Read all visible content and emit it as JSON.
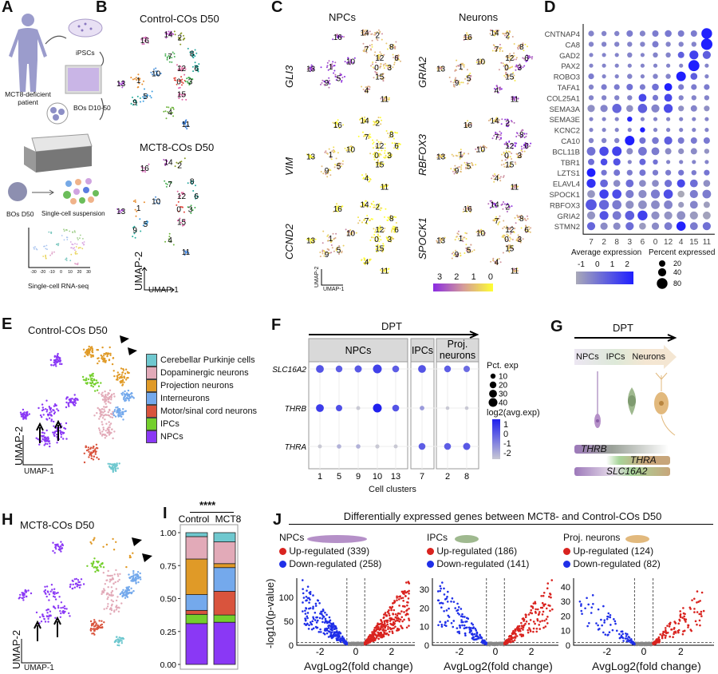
{
  "panel_letters": {
    "A": "A",
    "B": "B",
    "C": "C",
    "D": "D",
    "E": "E",
    "F": "F",
    "G": "G",
    "H": "H",
    "I": "I",
    "J": "J"
  },
  "panel_a": {
    "patient_label": "MCT8-deficient patient",
    "ipsc_label": "iPSCs",
    "bos_early_label": "BOs D10-50",
    "bos_d50_label": "BOs D50",
    "suspension_label": "Single-cell suspension",
    "rnaseq_label": "Single-cell RNA-seq",
    "mini_ticks": [
      "-30",
      "-20",
      "-10",
      "0",
      "10",
      "20",
      "30"
    ]
  },
  "panel_b": {
    "control_title": "Control-COs D50",
    "mct8_title": "MCT8-COs D50",
    "x_axis": "UMAP-1",
    "y_axis": "UMAP-2",
    "cluster_colors": {
      "0": "#e2453b",
      "1": "#e88b2a",
      "2": "#8a9a2a",
      "3": "#3dae4a",
      "4": "#6fb43f",
      "5": "#3d9ee0",
      "6": "#22a89a",
      "7": "#4fb35a",
      "8": "#29a6a0",
      "9": "#2ab0a0",
      "10": "#4a90d8",
      "11": "#3b82e0",
      "12": "#e06aa0",
      "13": "#b04fd8",
      "14": "#b84cc8",
      "15": "#e25fa8",
      "16": "#d46ab8"
    }
  },
  "panel_c": {
    "npc_title": "NPCs",
    "neuron_title": "Neurons",
    "npc_genes": [
      {
        "gene": "GLI3",
        "high_clusters": [
          "13",
          "1",
          "9",
          "5",
          "10",
          "16"
        ]
      },
      {
        "gene": "VIM",
        "high_clusters": [
          "1",
          "9",
          "5"
        ]
      },
      {
        "gene": "CCND2",
        "high_clusters": [
          "1",
          "5",
          "9",
          "10"
        ]
      }
    ],
    "neuron_genes": [
      {
        "gene": "GRIA2",
        "high_clusters": [
          "4",
          "11",
          "3",
          "6"
        ]
      },
      {
        "gene": "RBFOX3",
        "high_clusters": [
          "7",
          "2",
          "8",
          "6",
          "12"
        ]
      },
      {
        "gene": "SPOCK1",
        "high_clusters": [
          "14",
          "2"
        ]
      }
    ],
    "colorbar_ticks": [
      "3",
      "2",
      "1",
      "0"
    ],
    "colorbar_colors": [
      "#8a2be2",
      "#d49a9a",
      "#ffff33"
    ],
    "x_axis": "UMAP-1",
    "y_axis": "UMAP-2"
  },
  "chart_data": [
    {
      "type": "dotplot",
      "panel": "D",
      "genes": [
        "CNTNAP4",
        "CA8",
        "GAD2",
        "PAX2",
        "ROBO3",
        "TAFA1",
        "COL25A1",
        "SEMA3A",
        "SEMA3E",
        "KCNC2",
        "CA10",
        "BCL11B",
        "TBR1",
        "LZTS1",
        "ELAVL4",
        "SPOCK1",
        "RBFOX3",
        "GRIA2",
        "STMN2"
      ],
      "clusters": [
        "7",
        "2",
        "8",
        "3",
        "6",
        "0",
        "12",
        "4",
        "15",
        "11"
      ],
      "pct_expressed": [
        [
          15,
          10,
          10,
          20,
          15,
          20,
          25,
          20,
          20,
          80
        ],
        [
          10,
          10,
          10,
          10,
          10,
          20,
          10,
          10,
          10,
          90
        ],
        [
          5,
          5,
          5,
          10,
          5,
          10,
          10,
          20,
          50,
          40
        ],
        [
          5,
          5,
          5,
          5,
          5,
          5,
          5,
          5,
          85,
          5
        ],
        [
          15,
          5,
          5,
          10,
          5,
          10,
          10,
          60,
          25,
          5
        ],
        [
          10,
          15,
          15,
          20,
          15,
          25,
          35,
          15,
          15,
          15
        ],
        [
          10,
          10,
          10,
          10,
          35,
          15,
          35,
          10,
          10,
          10
        ],
        [
          30,
          30,
          55,
          25,
          55,
          40,
          50,
          15,
          20,
          15
        ],
        [
          5,
          5,
          5,
          10,
          5,
          5,
          5,
          5,
          5,
          5
        ],
        [
          5,
          5,
          5,
          5,
          10,
          5,
          5,
          5,
          5,
          5
        ],
        [
          10,
          10,
          10,
          60,
          20,
          25,
          40,
          20,
          20,
          20
        ],
        [
          45,
          55,
          60,
          20,
          45,
          35,
          20,
          15,
          20,
          10
        ],
        [
          20,
          25,
          30,
          5,
          20,
          10,
          5,
          5,
          5,
          5
        ],
        [
          45,
          15,
          20,
          15,
          20,
          15,
          15,
          15,
          10,
          15
        ],
        [
          50,
          35,
          25,
          35,
          25,
          25,
          30,
          40,
          35,
          25
        ],
        [
          35,
          55,
          55,
          40,
          40,
          50,
          55,
          25,
          40,
          45
        ],
        [
          85,
          65,
          55,
          40,
          45,
          45,
          45,
          15,
          35,
          20
        ],
        [
          40,
          50,
          45,
          55,
          65,
          40,
          40,
          45,
          40,
          35
        ],
        [
          40,
          30,
          30,
          40,
          25,
          30,
          35,
          55,
          35,
          40
        ]
      ],
      "avg_expression": [
        [
          0,
          0,
          0,
          0.2,
          0,
          0.2,
          0.3,
          0.2,
          0.2,
          2.6
        ],
        [
          0,
          0,
          0,
          0,
          0,
          0.2,
          0,
          0,
          0,
          2.7
        ],
        [
          0,
          0,
          0,
          0,
          0,
          0,
          0,
          1,
          1.8,
          1
        ],
        [
          0,
          0,
          0,
          0,
          0,
          0,
          0,
          0,
          2.7,
          0
        ],
        [
          0.2,
          0,
          0,
          0,
          0,
          0,
          0,
          2.7,
          1,
          0
        ],
        [
          0,
          0.2,
          0.2,
          0.5,
          0.2,
          0.5,
          2.7,
          0.2,
          0.2,
          0.2
        ],
        [
          0,
          0,
          0,
          0,
          1.6,
          0.3,
          1.6,
          0,
          0,
          0
        ],
        [
          -0.3,
          0,
          0.8,
          -0.3,
          1,
          0,
          1.5,
          -0.3,
          0,
          -0.3
        ],
        [
          0,
          0,
          0,
          2.5,
          0,
          0,
          0,
          0,
          0,
          0
        ],
        [
          0,
          0,
          0,
          0,
          2.7,
          0,
          0,
          0,
          0,
          0
        ],
        [
          0,
          0,
          0,
          2.7,
          0.5,
          0.3,
          1,
          0.3,
          0.3,
          0.3
        ],
        [
          0.5,
          1.5,
          1.7,
          -0.2,
          0.4,
          0.2,
          -0.2,
          -0.3,
          -0.2,
          -0.4
        ],
        [
          0.6,
          1.5,
          1.3,
          0,
          0.8,
          0.5,
          0,
          0,
          0,
          0
        ],
        [
          2.7,
          0.4,
          0.4,
          0.2,
          0.4,
          0.2,
          0.2,
          0.4,
          0.2,
          0.4
        ],
        [
          2.2,
          0.8,
          -0.2,
          0.6,
          -0.2,
          -0.2,
          0.5,
          1.6,
          0.6,
          -0.3
        ],
        [
          -0.5,
          1.8,
          1.5,
          0.2,
          -0.2,
          0.2,
          1.4,
          -1,
          0.2,
          0.2
        ],
        [
          1.2,
          0.8,
          0.2,
          -0.3,
          -0.3,
          -0.2,
          0,
          -0.6,
          0,
          -0.7
        ],
        [
          -0.4,
          1.3,
          0.3,
          1,
          1.8,
          -0.3,
          -0.4,
          -0.3,
          -0.6,
          -0.8
        ],
        [
          0.8,
          -0.2,
          -0.2,
          0.6,
          -0.6,
          -0.2,
          0.2,
          2.6,
          0.2,
          0.5
        ]
      ],
      "xlabel": "",
      "ylabel": "",
      "legend_color_title": "Average expression",
      "legend_color_ticks": [
        "-1",
        "0",
        "1",
        "2"
      ],
      "legend_color_range": [
        "#a9a9b8",
        "#1f1fff"
      ],
      "legend_size_title": "Percent expressed",
      "legend_size_values": [
        20,
        40,
        80
      ]
    },
    {
      "type": "dotplot",
      "panel": "F",
      "arrow_label": "DPT",
      "facets": [
        {
          "label": "NPCs",
          "clusters": [
            "1",
            "5",
            "9",
            "10",
            "13"
          ]
        },
        {
          "label": "IPCs",
          "clusters": [
            "7"
          ]
        },
        {
          "label": "Proj. neurons",
          "clusters": [
            "2",
            "8"
          ]
        }
      ],
      "genes": [
        "SLC16A2",
        "THRB",
        "THRA"
      ],
      "clusters": [
        "1",
        "5",
        "9",
        "10",
        "13",
        "7",
        "2",
        "8"
      ],
      "pct_exp": [
        [
          30,
          20,
          25,
          40,
          22,
          30,
          20,
          18
        ],
        [
          30,
          18,
          5,
          40,
          22,
          8,
          4,
          4
        ],
        [
          5,
          7,
          7,
          6,
          5,
          22,
          22,
          25
        ]
      ],
      "avg_exp": [
        [
          0.5,
          0.3,
          0.4,
          0.9,
          0.3,
          0.5,
          0.3,
          0
        ],
        [
          1,
          0.6,
          -2,
          1.6,
          0.5,
          -1,
          -2,
          -2
        ],
        [
          -2,
          -1.5,
          -1.5,
          -2,
          -2,
          0.3,
          0.3,
          0.4
        ]
      ],
      "xlabel": "Cell clusters",
      "legend_size_title": "Pct. exp",
      "legend_size_values": [
        10,
        20,
        30,
        40
      ],
      "legend_color_title": "log2(avg.exp)",
      "legend_color_ticks": [
        "1",
        "0",
        "-1",
        "-2"
      ]
    },
    {
      "type": "bar",
      "stacked": true,
      "panel": "I",
      "categories": [
        "Control",
        "MCT8"
      ],
      "significance": "****",
      "yticks": [
        "0.00",
        "0.25",
        "0.50",
        "0.75",
        "1.00"
      ],
      "ylim": [
        0,
        1
      ],
      "series": [
        {
          "name": "NPCs",
          "color": "#8a38f5",
          "values": [
            0.31,
            0.32
          ]
        },
        {
          "name": "IPCs",
          "color": "#74cf2c",
          "values": [
            0.07,
            0.055
          ]
        },
        {
          "name": "Motor/sinal cord neurons",
          "color": "#d9543d",
          "values": [
            0.03,
            0.18
          ]
        },
        {
          "name": "Interneurons",
          "color": "#74a9ec",
          "values": [
            0.12,
            0.18
          ]
        },
        {
          "name": "Projection neurons",
          "color": "#e09a27",
          "values": [
            0.27,
            0.03
          ]
        },
        {
          "name": "Dopaminergic neurons",
          "color": "#e2aab8",
          "values": [
            0.17,
            0.165
          ]
        },
        {
          "name": "Cerebellar Purkinje cells",
          "color": "#6fc8cf",
          "values": [
            0.03,
            0.07
          ]
        }
      ]
    },
    {
      "type": "scatter",
      "panel": "J",
      "title": "Differentially expressed genes between MCT8- and Control-COs D50",
      "xlabel": "AvgLog2(fold change)",
      "ylabel": "-log10(p-value)",
      "up_color": "#d9231f",
      "down_color": "#1f2fe8",
      "subplots": [
        {
          "label": "NPCs",
          "up_label": "Up-regulated (339)",
          "down_label": "Down-regulated (258)",
          "up": 339,
          "down": 258,
          "xticks": [
            "-2",
            "0",
            "2"
          ],
          "yticks": [
            "0",
            "50",
            "100"
          ],
          "ymax": 140,
          "xlim": [
            -3.3,
            3.3
          ]
        },
        {
          "label": "IPCs",
          "up_label": "Up-regulated (186)",
          "down_label": "Down-regulated (141)",
          "up": 186,
          "down": 141,
          "xticks": [
            "-2",
            "0",
            "2"
          ],
          "yticks": [
            "0",
            "10",
            "20",
            "30"
          ],
          "ymax": 36,
          "xlim": [
            -3.5,
            3.5
          ]
        },
        {
          "label": "Proj. neurons",
          "up_label": "Up-regulated (124)",
          "down_label": "Down-regulated (82)",
          "up": 124,
          "down": 82,
          "xticks": [
            "-2",
            "0",
            "2"
          ],
          "yticks": [
            "0",
            "10",
            "20",
            "30",
            "40"
          ],
          "ymax": 46,
          "xlim": [
            -3.8,
            3.8
          ]
        }
      ]
    }
  ],
  "panel_e": {
    "title": "Control-COs D50",
    "x_axis": "UMAP-1",
    "y_axis": "UMAP-2",
    "legend": [
      {
        "label": "Cerebellar Purkinje cells",
        "color": "#6fc8cf"
      },
      {
        "label": "Dopaminergic neurons",
        "color": "#e2aab8"
      },
      {
        "label": "Projection neurons",
        "color": "#e09a27"
      },
      {
        "label": "Interneurons",
        "color": "#74a9ec"
      },
      {
        "label": "Motor/sinal cord neurons",
        "color": "#d9543d"
      },
      {
        "label": "IPCs",
        "color": "#74cf2c"
      },
      {
        "label": "NPCs",
        "color": "#8a38f5"
      }
    ]
  },
  "panel_g": {
    "arrow_label": "DPT",
    "stages": [
      "NPCs",
      "IPCs",
      "Neurons"
    ],
    "genes": [
      "THRB",
      "THRA",
      "SLC16A2"
    ]
  },
  "panel_h": {
    "title": "MCT8-COs D50",
    "x_axis": "UMAP-1",
    "y_axis": "UMAP-2"
  }
}
